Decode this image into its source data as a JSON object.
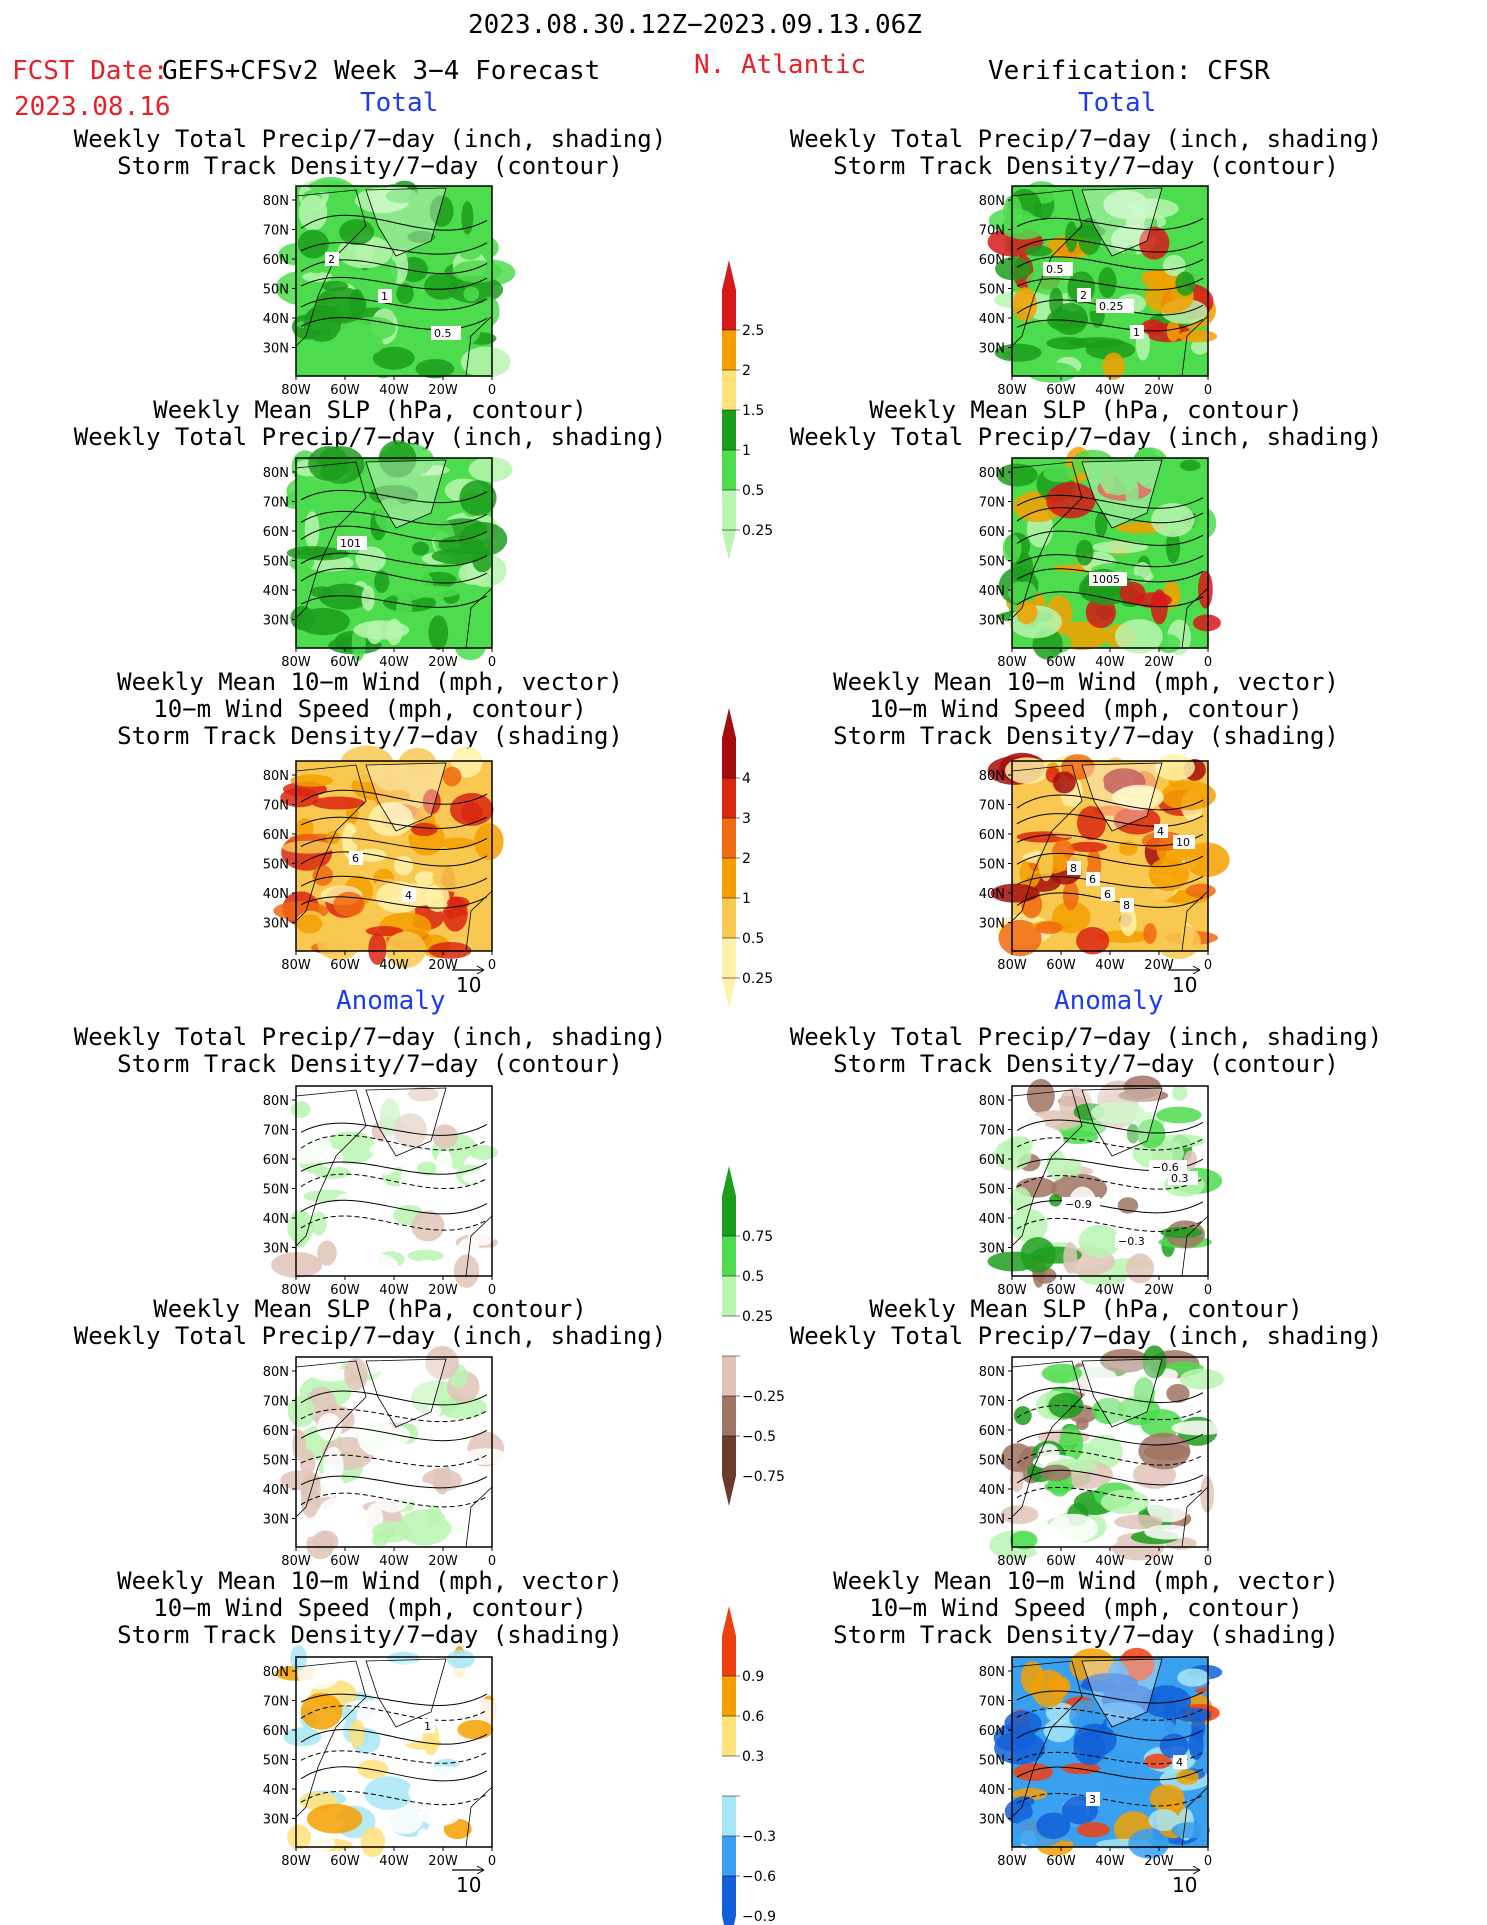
{
  "header": {
    "period": "2023.08.30.12Z−2023.09.13.06Z",
    "fcst_label": "FCST Date:",
    "model_label": "GEFS+CFSv2 Week 3−4 Forecast",
    "fcst_date": "2023.08.16",
    "region": "N. Atlantic",
    "verification": "Verification: CFSR"
  },
  "section_labels": {
    "total": "Total",
    "anomaly": "Anomaly"
  },
  "panel_titles": {
    "precip_storm": [
      "Weekly Total Precip/7−day (inch, shading)",
      "Storm Track Density/7−day (contour)"
    ],
    "slp_precip": [
      "Weekly Mean SLP (hPa, contour)",
      "Weekly Total Precip/7−day (inch, shading)"
    ],
    "wind_storm": [
      "Weekly Mean 10−m Wind (mph, vector)",
      "10−m Wind Speed (mph, contour)",
      "Storm Track Density/7−day (shading)"
    ]
  },
  "axes": {
    "lat_ticks": [
      "80N",
      "70N",
      "60N",
      "50N",
      "40N",
      "30N"
    ],
    "lon_ticks": [
      "80W",
      "60W",
      "40W",
      "20W",
      "0"
    ]
  },
  "vector_reference": "10",
  "colorbars": {
    "precip_total": {
      "labels": [
        "2.5",
        "2",
        "1.5",
        "1",
        "0.5",
        "0.25"
      ],
      "colors": [
        "#d71919",
        "#f5a000",
        "#ffe27a",
        "#1c9d1c",
        "#4ddc4d",
        "#b8f5b0"
      ]
    },
    "storm_total": {
      "labels": [
        "4",
        "3",
        "2",
        "1",
        "0.5",
        "0.25"
      ],
      "colors": [
        "#a30d0d",
        "#d9260f",
        "#f06a10",
        "#f5a000",
        "#f8c850",
        "#fff1a8"
      ]
    },
    "precip_anom": {
      "labels": [
        "0.75",
        "0.5",
        "0.25",
        "−0.25",
        "−0.5",
        "−0.75"
      ],
      "colors": [
        "#1c9d1c",
        "#4ddc4d",
        "#b8f5b0",
        "#ffffff",
        "#e0c4b8",
        "#a07464",
        "#6a3c2e"
      ]
    },
    "storm_anom": {
      "labels": [
        "0.9",
        "0.6",
        "0.3",
        "−0.3",
        "−0.6",
        "−0.9"
      ],
      "colors": [
        "#f04010",
        "#f5a000",
        "#ffe27a",
        "#ffffff",
        "#a8e6f5",
        "#3aa0f0",
        "#1260d8"
      ]
    }
  },
  "contour_labels": {
    "fc_precip_storm": [
      "2",
      "1",
      "0.5"
    ],
    "fc_slp": [
      "101"
    ],
    "fc_wind": [
      "6",
      "4"
    ],
    "vf_precip_storm": [
      "2",
      "1",
      "0.5",
      "0.25"
    ],
    "vf_slp": [
      "1005"
    ],
    "vf_wind": [
      "6",
      "4",
      "8",
      "8",
      "10",
      "6"
    ],
    "vf_anom_precip_storm": [
      "−0.6",
      "−0.9",
      "−0.3",
      "0.3"
    ],
    "fc_anom_wind": [
      "1"
    ],
    "vf_anom_wind": [
      "4",
      "3"
    ]
  }
}
